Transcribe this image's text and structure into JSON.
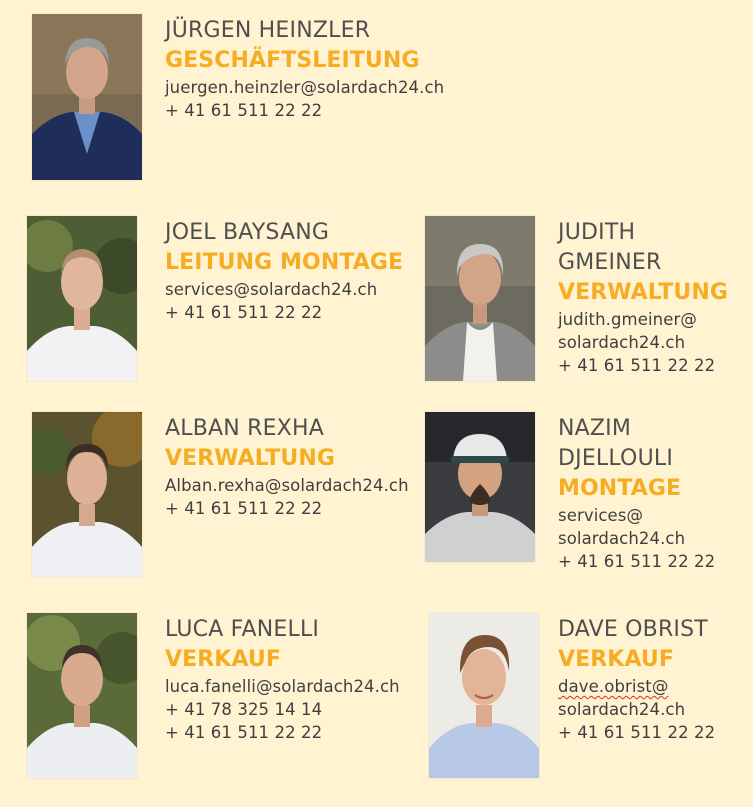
{
  "people": [
    {
      "name_lines": [
        "JÜRGEN HEINZLER"
      ],
      "role": "GESCHÄFTSLEITUNG",
      "contact_lines": [
        "juergen.heinzler@solardach24.ch",
        "+ 41 61 511 22 22"
      ]
    },
    {
      "name_lines": [
        "JOEL BAYSANG"
      ],
      "role": "LEITUNG MONTAGE",
      "contact_lines": [
        "services@solardach24.ch",
        "+ 41 61 511 22 22"
      ]
    },
    {
      "name_lines": [
        "JUDITH",
        "GMEINER"
      ],
      "role": "VERWALTUNG",
      "contact_lines": [
        "judith.gmeiner@",
        "solardach24.ch",
        "+ 41 61 511 22 22"
      ]
    },
    {
      "name_lines": [
        "ALBAN REXHA"
      ],
      "role": "VERWALTUNG",
      "contact_lines": [
        "Alban.rexha@solardach24.ch",
        "+ 41 61 511 22 22"
      ]
    },
    {
      "name_lines": [
        "NAZIM",
        "DJELLOULI"
      ],
      "role": "MONTAGE",
      "contact_lines": [
        "services@",
        "solardach24.ch",
        "+ 41 61 511 22 22"
      ]
    },
    {
      "name_lines": [
        "LUCA FANELLI"
      ],
      "role": "VERKAUF",
      "contact_lines": [
        "luca.fanelli@solardach24.ch",
        "+ 41 78 325 14 14",
        "+ 41 61 511 22 22"
      ]
    },
    {
      "name_lines": [
        "DAVE OBRIST"
      ],
      "role": "VERKAUF",
      "contact_lines": [
        "dave.obrist@",
        "solardach24.ch",
        "+ 41 61 511 22 22"
      ]
    }
  ],
  "colors": {
    "background": "#fff3d2",
    "role_accent": "#f6ad24",
    "text": "#4a4a4a"
  }
}
